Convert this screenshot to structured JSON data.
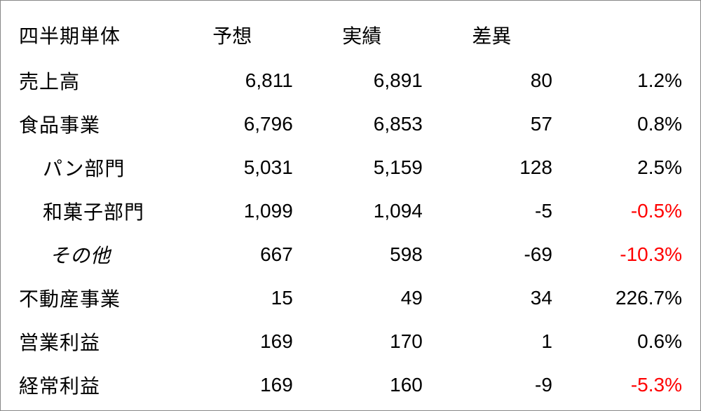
{
  "table": {
    "background_color": "#ffffff",
    "text_color": "#000000",
    "negative_color": "#ff0000",
    "font_size_pt": 21,
    "header": {
      "label": "四半期単体",
      "forecast": "予想",
      "actual": "実績",
      "diff": "差異",
      "pct": ""
    },
    "rows": [
      {
        "label": "売上高",
        "indent": 0,
        "forecast": "6,811",
        "actual": "6,891",
        "diff": "80",
        "pct": "1.2%",
        "pct_negative": false
      },
      {
        "label": "食品事業",
        "indent": 0,
        "forecast": "6,796",
        "actual": "6,853",
        "diff": "57",
        "pct": "0.8%",
        "pct_negative": false
      },
      {
        "label": "パン部門",
        "indent": 1,
        "forecast": "5,031",
        "actual": "5,159",
        "diff": "128",
        "pct": "2.5%",
        "pct_negative": false
      },
      {
        "label": "和菓子部門",
        "indent": 1,
        "forecast": "1,099",
        "actual": "1,094",
        "diff": "-5",
        "pct": "-0.5%",
        "pct_negative": true
      },
      {
        "label": "その他",
        "indent": 2,
        "forecast": "667",
        "actual": "598",
        "diff": "-69",
        "pct": "-10.3%",
        "pct_negative": true
      },
      {
        "label": "不動産事業",
        "indent": 0,
        "forecast": "15",
        "actual": "49",
        "diff": "34",
        "pct": "226.7%",
        "pct_negative": false
      },
      {
        "label": "営業利益",
        "indent": 0,
        "forecast": "169",
        "actual": "170",
        "diff": "1",
        "pct": "0.6%",
        "pct_negative": false
      },
      {
        "label": "経常利益",
        "indent": 0,
        "forecast": "169",
        "actual": "160",
        "diff": "-9",
        "pct": "-5.3%",
        "pct_negative": true
      }
    ]
  }
}
